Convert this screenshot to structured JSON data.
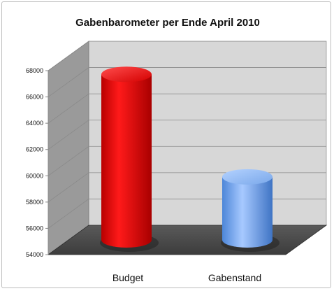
{
  "chart_data": {
    "type": "bar",
    "style": "3d-cylinder",
    "title": "Gabenbarometer per Ende April 2010",
    "categories": [
      "Budget",
      "Gabenstand"
    ],
    "values": [
      66600,
      58800
    ],
    "bar_colors": [
      "#ee0000",
      "#7aaef0"
    ],
    "ylim": [
      54000,
      68000
    ],
    "yticks": [
      "54000",
      "56000",
      "58000",
      "60000",
      "62000",
      "64000",
      "66000",
      "68000"
    ],
    "xlabel": "",
    "ylabel": "",
    "grid": true,
    "legend": "none"
  }
}
